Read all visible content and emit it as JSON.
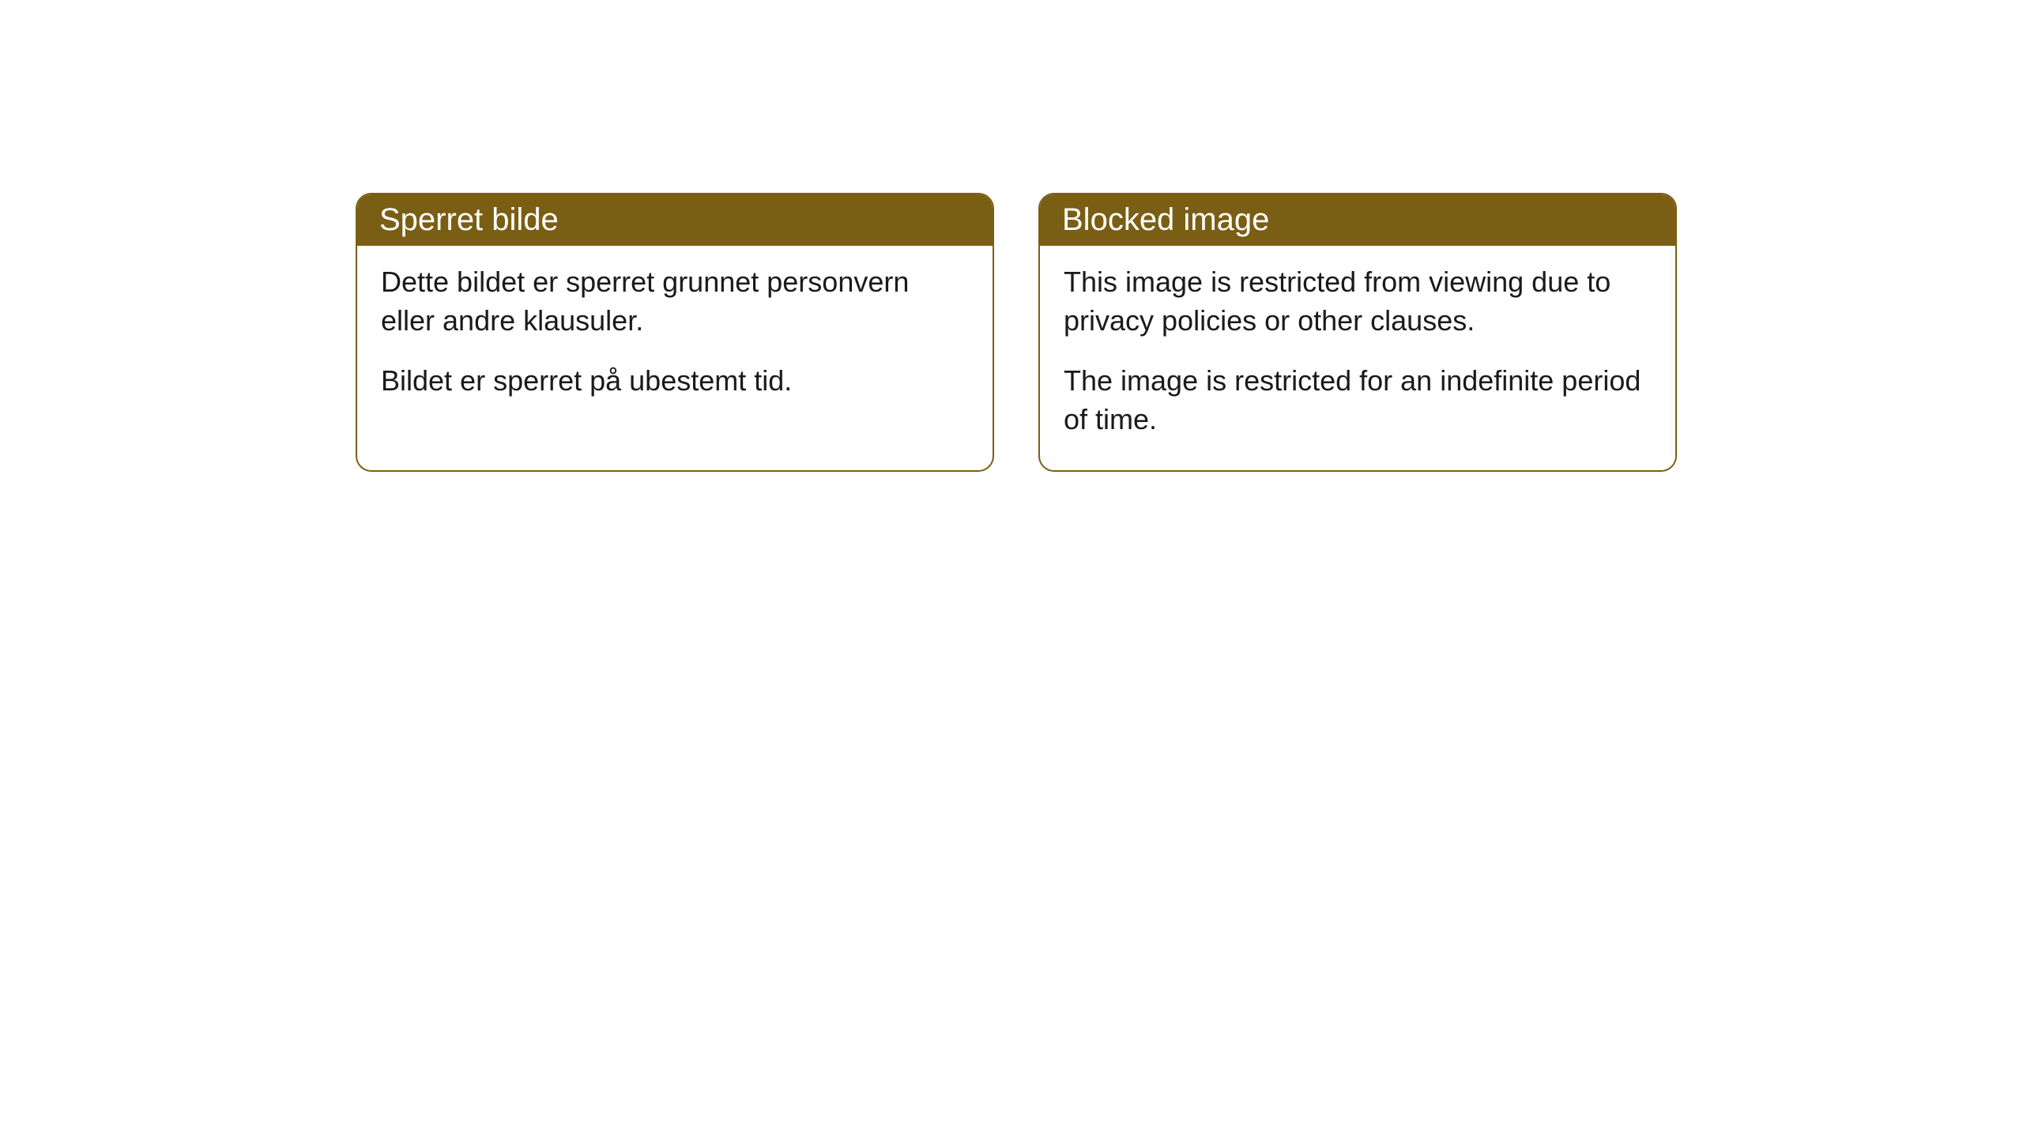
{
  "cards": [
    {
      "title": "Sperret bilde",
      "para1": "Dette bildet er sperret grunnet personvern eller andre klausuler.",
      "para2": "Bildet er sperret på ubestemt tid."
    },
    {
      "title": "Blocked image",
      "para1": "This image is restricted from viewing due to privacy policies or other clauses.",
      "para2": "The image is restricted for an indefinite period of time."
    }
  ],
  "style": {
    "header_bg": "#7a5e13",
    "header_text_color": "#ffffff",
    "border_color": "#7a5e13",
    "body_bg": "#ffffff",
    "body_text_color": "#1a1a1a",
    "border_radius": 20,
    "title_fontsize": 40,
    "body_fontsize": 36
  }
}
